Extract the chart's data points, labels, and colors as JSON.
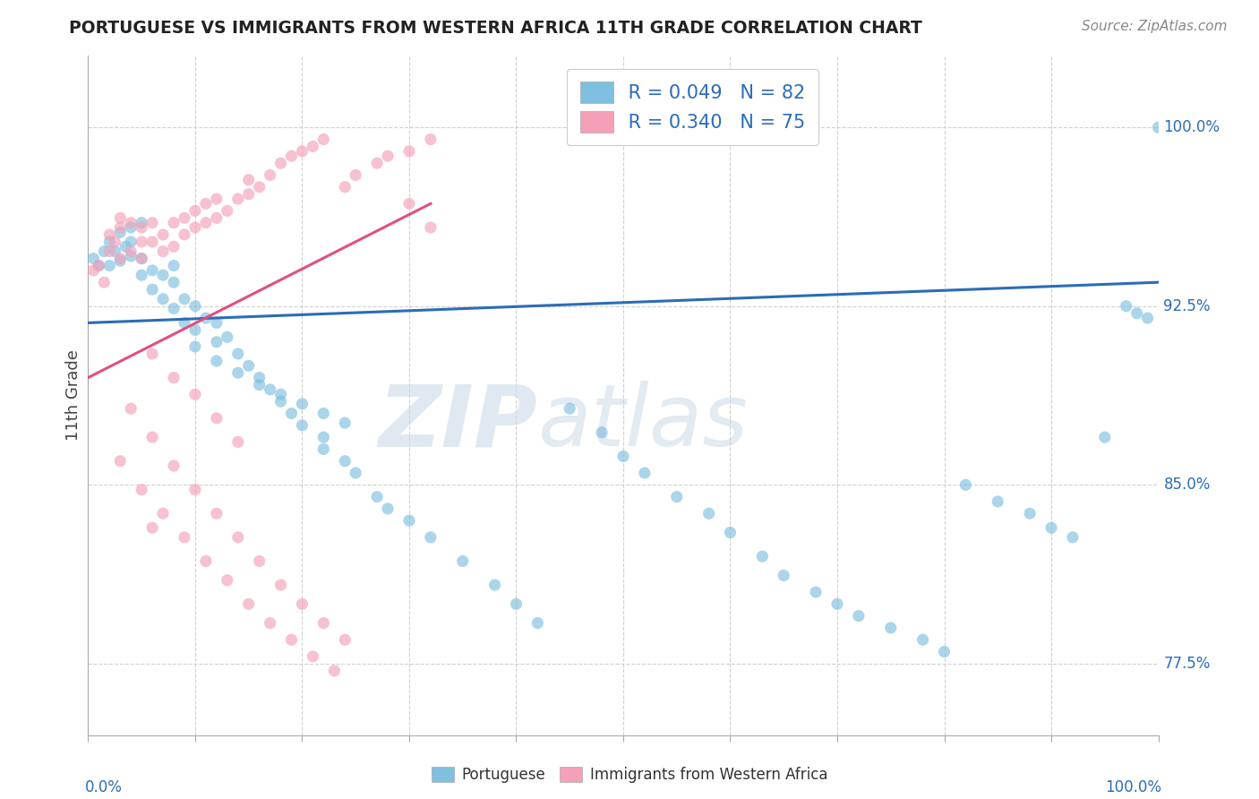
{
  "title": "PORTUGUESE VS IMMIGRANTS FROM WESTERN AFRICA 11TH GRADE CORRELATION CHART",
  "source": "Source: ZipAtlas.com",
  "ylabel": "11th Grade",
  "ytick_labels": [
    "77.5%",
    "85.0%",
    "92.5%",
    "100.0%"
  ],
  "ytick_values": [
    0.775,
    0.85,
    0.925,
    1.0
  ],
  "xlim": [
    0.0,
    1.0
  ],
  "ylim": [
    0.745,
    1.03
  ],
  "blue_color": "#7fbfdf",
  "pink_color": "#f4a0b8",
  "blue_line_color": "#2b6cb8",
  "pink_line_color": "#e05080",
  "watermark": "ZIPatlas",
  "blue_line_x": [
    0.0,
    1.0
  ],
  "blue_line_y": [
    0.918,
    0.935
  ],
  "pink_line_x": [
    0.0,
    0.32
  ],
  "pink_line_y": [
    0.895,
    0.968
  ],
  "port_x": [
    0.005,
    0.01,
    0.015,
    0.02,
    0.02,
    0.025,
    0.03,
    0.03,
    0.035,
    0.04,
    0.04,
    0.04,
    0.05,
    0.05,
    0.05,
    0.06,
    0.06,
    0.07,
    0.07,
    0.08,
    0.08,
    0.08,
    0.09,
    0.09,
    0.1,
    0.1,
    0.11,
    0.12,
    0.12,
    0.13,
    0.14,
    0.15,
    0.16,
    0.17,
    0.18,
    0.19,
    0.2,
    0.22,
    0.22,
    0.24,
    0.25,
    0.27,
    0.28,
    0.3,
    0.32,
    0.35,
    0.38,
    0.4,
    0.42,
    0.45,
    0.48,
    0.5,
    0.52,
    0.55,
    0.58,
    0.6,
    0.63,
    0.65,
    0.68,
    0.7,
    0.72,
    0.75,
    0.78,
    0.8,
    0.82,
    0.85,
    0.88,
    0.9,
    0.92,
    0.95,
    0.97,
    0.98,
    0.99,
    1.0,
    0.1,
    0.12,
    0.14,
    0.16,
    0.18,
    0.2,
    0.22,
    0.24
  ],
  "port_y": [
    0.945,
    0.942,
    0.948,
    0.952,
    0.942,
    0.948,
    0.956,
    0.944,
    0.95,
    0.946,
    0.952,
    0.958,
    0.938,
    0.945,
    0.96,
    0.932,
    0.94,
    0.928,
    0.938,
    0.924,
    0.935,
    0.942,
    0.918,
    0.928,
    0.915,
    0.925,
    0.92,
    0.91,
    0.918,
    0.912,
    0.905,
    0.9,
    0.895,
    0.89,
    0.885,
    0.88,
    0.875,
    0.865,
    0.87,
    0.86,
    0.855,
    0.845,
    0.84,
    0.835,
    0.828,
    0.818,
    0.808,
    0.8,
    0.792,
    0.882,
    0.872,
    0.862,
    0.855,
    0.845,
    0.838,
    0.83,
    0.82,
    0.812,
    0.805,
    0.8,
    0.795,
    0.79,
    0.785,
    0.78,
    0.85,
    0.843,
    0.838,
    0.832,
    0.828,
    0.87,
    0.925,
    0.922,
    0.92,
    1.0,
    0.908,
    0.902,
    0.897,
    0.892,
    0.888,
    0.884,
    0.88,
    0.876
  ],
  "immig_x": [
    0.005,
    0.01,
    0.015,
    0.02,
    0.02,
    0.025,
    0.03,
    0.03,
    0.03,
    0.04,
    0.04,
    0.05,
    0.05,
    0.05,
    0.06,
    0.06,
    0.07,
    0.07,
    0.08,
    0.08,
    0.09,
    0.09,
    0.1,
    0.1,
    0.11,
    0.11,
    0.12,
    0.12,
    0.13,
    0.14,
    0.15,
    0.15,
    0.16,
    0.17,
    0.18,
    0.19,
    0.2,
    0.21,
    0.22,
    0.24,
    0.25,
    0.27,
    0.28,
    0.3,
    0.32,
    0.04,
    0.06,
    0.08,
    0.1,
    0.12,
    0.14,
    0.16,
    0.18,
    0.2,
    0.22,
    0.24,
    0.03,
    0.05,
    0.07,
    0.09,
    0.11,
    0.13,
    0.15,
    0.17,
    0.19,
    0.21,
    0.23,
    0.06,
    0.08,
    0.1,
    0.12,
    0.14,
    0.06,
    0.3,
    0.32
  ],
  "immig_y": [
    0.94,
    0.942,
    0.935,
    0.948,
    0.955,
    0.952,
    0.945,
    0.958,
    0.962,
    0.948,
    0.96,
    0.952,
    0.945,
    0.958,
    0.952,
    0.96,
    0.948,
    0.955,
    0.95,
    0.96,
    0.955,
    0.962,
    0.958,
    0.965,
    0.96,
    0.968,
    0.962,
    0.97,
    0.965,
    0.97,
    0.972,
    0.978,
    0.975,
    0.98,
    0.985,
    0.988,
    0.99,
    0.992,
    0.995,
    0.975,
    0.98,
    0.985,
    0.988,
    0.99,
    0.995,
    0.882,
    0.87,
    0.858,
    0.848,
    0.838,
    0.828,
    0.818,
    0.808,
    0.8,
    0.792,
    0.785,
    0.86,
    0.848,
    0.838,
    0.828,
    0.818,
    0.81,
    0.8,
    0.792,
    0.785,
    0.778,
    0.772,
    0.905,
    0.895,
    0.888,
    0.878,
    0.868,
    0.832,
    0.968,
    0.958
  ]
}
